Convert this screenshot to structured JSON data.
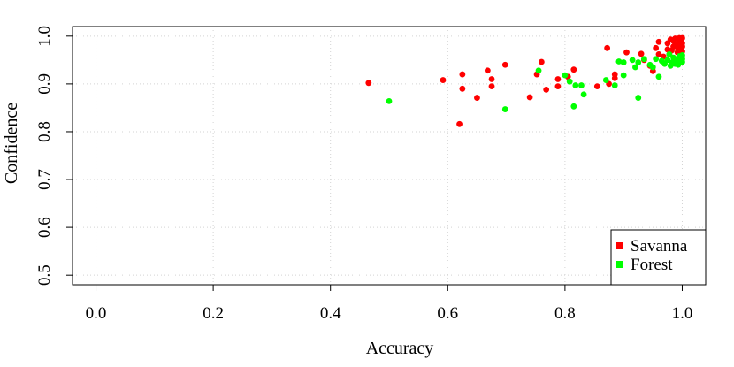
{
  "chart_data": {
    "type": "scatter",
    "title": "",
    "xlabel": "Accuracy",
    "ylabel": "Confidence",
    "xlim": [
      -0.04,
      1.04
    ],
    "ylim": [
      0.48,
      1.02
    ],
    "xticks": [
      0.0,
      0.2,
      0.4,
      0.6,
      0.8,
      1.0
    ],
    "xtick_labels": [
      "0.0",
      "0.2",
      "0.4",
      "0.6",
      "0.8",
      "1.0"
    ],
    "yticks": [
      0.5,
      0.6,
      0.7,
      0.8,
      0.9,
      1.0
    ],
    "ytick_labels": [
      "0.5",
      "0.6",
      "0.7",
      "0.8",
      "0.9",
      "1.0"
    ],
    "grid": true,
    "legend_position": "bottom-right",
    "series": [
      {
        "name": "Savanna",
        "color": "#ff0000",
        "points": [
          [
            0.465,
            0.902
          ],
          [
            0.592,
            0.908
          ],
          [
            0.62,
            0.816
          ],
          [
            0.625,
            0.92
          ],
          [
            0.625,
            0.89
          ],
          [
            0.65,
            0.871
          ],
          [
            0.668,
            0.928
          ],
          [
            0.675,
            0.91
          ],
          [
            0.675,
            0.895
          ],
          [
            0.698,
            0.94
          ],
          [
            0.74,
            0.872
          ],
          [
            0.752,
            0.92
          ],
          [
            0.76,
            0.946
          ],
          [
            0.768,
            0.888
          ],
          [
            0.788,
            0.895
          ],
          [
            0.788,
            0.91
          ],
          [
            0.805,
            0.915
          ],
          [
            0.815,
            0.93
          ],
          [
            0.855,
            0.895
          ],
          [
            0.872,
            0.975
          ],
          [
            0.875,
            0.9
          ],
          [
            0.885,
            0.912
          ],
          [
            0.885,
            0.92
          ],
          [
            0.905,
            0.966
          ],
          [
            0.93,
            0.963
          ],
          [
            0.935,
            0.95
          ],
          [
            0.945,
            0.938
          ],
          [
            0.95,
            0.927
          ],
          [
            0.955,
            0.975
          ],
          [
            0.96,
            0.988
          ],
          [
            0.96,
            0.962
          ],
          [
            0.968,
            0.957
          ],
          [
            0.975,
            0.972
          ],
          [
            0.975,
            0.985
          ],
          [
            0.98,
            0.993
          ],
          [
            0.982,
            0.97
          ],
          [
            0.985,
            0.978
          ],
          [
            0.985,
            0.99
          ],
          [
            0.988,
            0.995
          ],
          [
            0.99,
            0.983
          ],
          [
            0.992,
            0.966
          ],
          [
            0.993,
            0.975
          ],
          [
            0.995,
            0.988
          ],
          [
            0.995,
            0.996
          ],
          [
            0.997,
            0.972
          ],
          [
            0.998,
            0.99
          ],
          [
            1.0,
            0.996
          ],
          [
            1.0,
            0.985
          ],
          [
            1.0,
            0.978
          ],
          [
            1.0,
            0.968
          ],
          [
            0.998,
            0.983
          ],
          [
            0.996,
            0.96
          ],
          [
            0.978,
            0.962
          ]
        ]
      },
      {
        "name": "Forest",
        "color": "#00ff00",
        "points": [
          [
            0.5,
            0.864
          ],
          [
            0.698,
            0.847
          ],
          [
            0.755,
            0.928
          ],
          [
            0.8,
            0.918
          ],
          [
            0.808,
            0.905
          ],
          [
            0.815,
            0.853
          ],
          [
            0.818,
            0.897
          ],
          [
            0.828,
            0.897
          ],
          [
            0.832,
            0.878
          ],
          [
            0.87,
            0.908
          ],
          [
            0.885,
            0.897
          ],
          [
            0.892,
            0.947
          ],
          [
            0.9,
            0.945
          ],
          [
            0.9,
            0.918
          ],
          [
            0.915,
            0.95
          ],
          [
            0.92,
            0.935
          ],
          [
            0.925,
            0.871
          ],
          [
            0.925,
            0.945
          ],
          [
            0.935,
            0.952
          ],
          [
            0.945,
            0.94
          ],
          [
            0.95,
            0.935
          ],
          [
            0.955,
            0.952
          ],
          [
            0.96,
            0.915
          ],
          [
            0.965,
            0.948
          ],
          [
            0.97,
            0.942
          ],
          [
            0.975,
            0.95
          ],
          [
            0.978,
            0.962
          ],
          [
            0.98,
            0.938
          ],
          [
            0.983,
            0.945
          ],
          [
            0.985,
            0.955
          ],
          [
            0.988,
            0.942
          ],
          [
            0.99,
            0.948
          ],
          [
            0.992,
            0.952
          ],
          [
            0.995,
            0.958
          ],
          [
            0.997,
            0.948
          ],
          [
            1.0,
            0.952
          ],
          [
            1.0,
            0.96
          ],
          [
            1.0,
            0.946
          ],
          [
            0.998,
            0.955
          ],
          [
            0.993,
            0.94
          ]
        ]
      }
    ]
  }
}
